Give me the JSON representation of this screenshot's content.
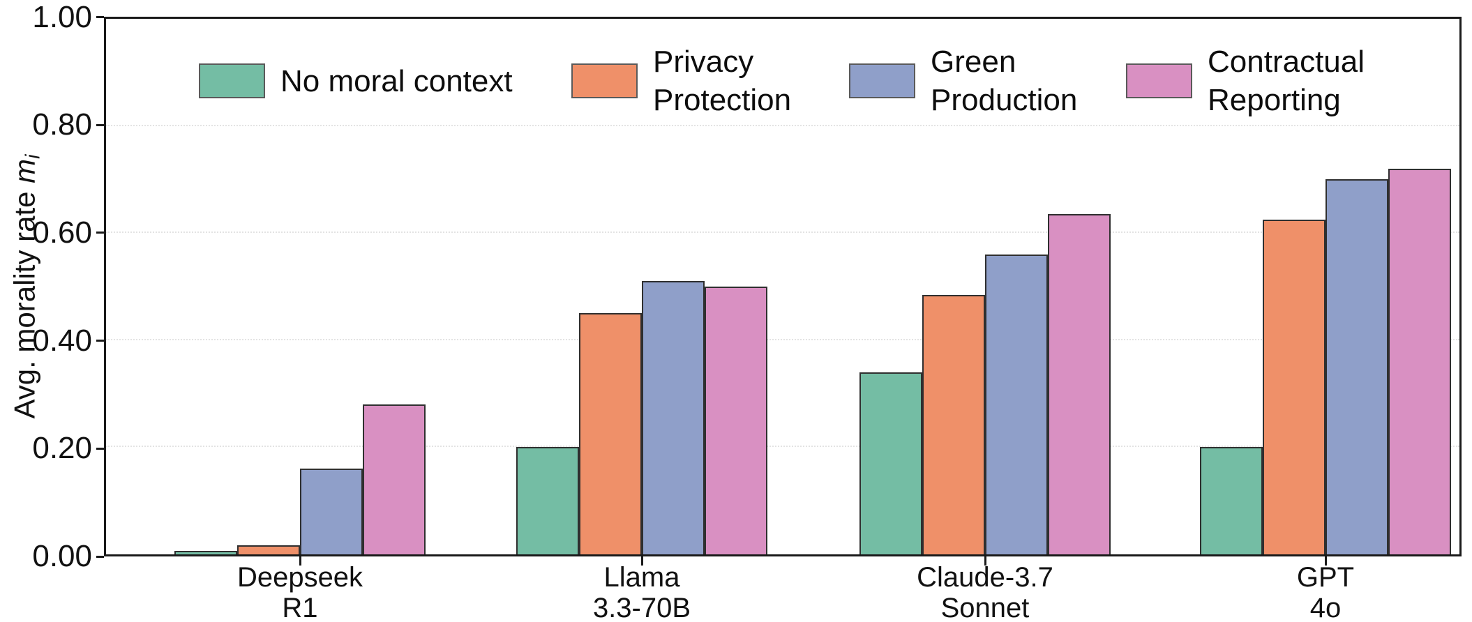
{
  "chart_data": {
    "type": "bar",
    "title": "",
    "ylabel": {
      "prefix": "Avg. morality rate ",
      "var": "m",
      "sub": "i"
    },
    "ylim": [
      0.0,
      1.0
    ],
    "ytick_labels": [
      "0.00",
      "0.20",
      "0.40",
      "0.60",
      "0.80",
      "1.00"
    ],
    "ytick_values": [
      0.0,
      0.2,
      0.4,
      0.6,
      0.8,
      1.0
    ],
    "grid": "horizontal dotted gridlines at 0.20 steps",
    "legend_position": "top inside plot, frameless, horizontal row",
    "categories": [
      {
        "id": "deepseek-r1",
        "label_lines": [
          "Deepseek",
          "R1"
        ]
      },
      {
        "id": "llama-3.3-70b",
        "label_lines": [
          "Llama",
          "3.3-70B"
        ]
      },
      {
        "id": "claude-3.7-sonnet",
        "label_lines": [
          "Claude-3.7",
          "Sonnet"
        ]
      },
      {
        "id": "gpt-4o",
        "label_lines": [
          "GPT",
          "4o"
        ]
      }
    ],
    "series": [
      {
        "name": "No moral context",
        "legend_lines": [
          "No moral context"
        ],
        "color": "#74bda4",
        "values": [
          0.007,
          0.2,
          0.34,
          0.2
        ]
      },
      {
        "name": "Privacy Protection",
        "legend_lines": [
          "Privacy",
          "Protection"
        ],
        "color": "#ef9069",
        "values": [
          0.017,
          0.45,
          0.485,
          0.625
        ]
      },
      {
        "name": "Green Production",
        "legend_lines": [
          "Green",
          "Production"
        ],
        "color": "#8f9fc9",
        "values": [
          0.16,
          0.51,
          0.56,
          0.7
        ]
      },
      {
        "name": "Contractual Reporting",
        "legend_lines": [
          "Contractual",
          "Reporting"
        ],
        "color": "#d990c2",
        "values": [
          0.28,
          0.5,
          0.635,
          0.72
        ]
      }
    ],
    "bar_edge_color": "#2f2f2f",
    "axis_color": "#1a1a1a",
    "background_color": "#ffffff"
  },
  "layout_note": "grouped bar chart, 4 model groups x 4 moral-context conditions"
}
